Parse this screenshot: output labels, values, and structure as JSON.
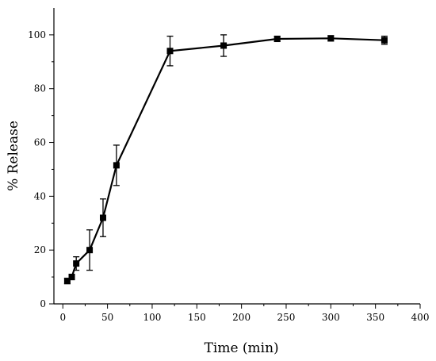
{
  "chart_data": {
    "type": "line",
    "title": "",
    "xlabel": "Time (min)",
    "ylabel": "% Release",
    "xlim": [
      -10,
      400
    ],
    "ylim": [
      0,
      110
    ],
    "xticks": [
      0,
      50,
      100,
      150,
      200,
      250,
      300,
      350,
      400
    ],
    "yticks": [
      0,
      20,
      40,
      60,
      80,
      100
    ],
    "grid": false,
    "legend": "none",
    "series": [
      {
        "color": "#000000",
        "marker": "square",
        "x": [
          5,
          10,
          15,
          30,
          45,
          60,
          120,
          180,
          240,
          300,
          360
        ],
        "y": [
          8.5,
          10,
          15,
          20,
          32,
          51.5,
          94,
          96,
          98.5,
          98.7,
          98
        ],
        "error": [
          1,
          1,
          2.5,
          7.5,
          7,
          7.5,
          5.5,
          4,
          1,
          1,
          1.5
        ]
      }
    ]
  }
}
